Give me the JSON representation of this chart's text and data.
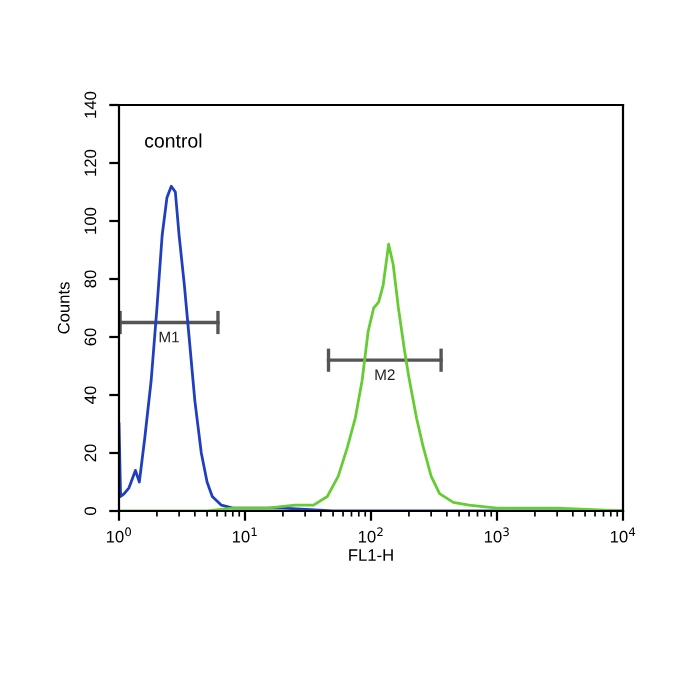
{
  "chart_data": {
    "type": "line",
    "xlabel": "FL1-H",
    "ylabel": "Counts",
    "log": "x",
    "xlim": [
      1,
      10000
    ],
    "xticks": [
      {
        "value": 1,
        "label": "10$^{0}$"
      },
      {
        "value": 10,
        "label": "10$^{1}$"
      },
      {
        "value": 100,
        "label": "10$^{2}$"
      },
      {
        "value": 1000,
        "label": "10$^{3}$"
      },
      {
        "value": 10000,
        "label": "10$^{4}$"
      }
    ],
    "ylim": [
      0,
      140
    ],
    "yticks": [
      0,
      20,
      40,
      60,
      80,
      100,
      120,
      140
    ],
    "grid": false,
    "legend": false,
    "marker": "none",
    "line_style": "solid",
    "annotations": [
      "control"
    ],
    "series": [
      {
        "name": "M1",
        "color": "#555555",
        "x": [
          1.02,
          6.1
        ],
        "values": [
          65,
          65
        ],
        "errors": [
          4,
          4
        ]
      },
      {
        "name": "M2",
        "color": "#555555",
        "x": [
          46,
          360
        ],
        "values": [
          52,
          52
        ],
        "errors": [
          4,
          4
        ]
      },
      {
        "color": "#1f3fbf",
        "x": [
          1.0,
          1.03,
          1.1,
          1.2,
          1.35,
          1.45,
          1.6,
          1.8,
          2.0,
          2.2,
          2.4,
          2.6,
          2.8,
          3.0,
          3.3,
          3.6,
          4.0,
          4.5,
          5.0,
          5.5,
          6.5,
          8,
          10,
          20,
          50,
          100,
          500,
          10000
        ],
        "values": [
          30,
          5,
          6,
          8,
          14,
          10,
          25,
          45,
          70,
          95,
          108,
          112,
          110,
          95,
          78,
          60,
          38,
          20,
          10,
          5,
          2,
          1,
          1,
          1,
          0,
          0,
          0,
          0
        ]
      },
      {
        "color": "#66cc33",
        "x": [
          1,
          5,
          8,
          15,
          25,
          35,
          45,
          55,
          65,
          75,
          85,
          95,
          105,
          115,
          125,
          138,
          150,
          165,
          185,
          200,
          230,
          260,
          300,
          350,
          450,
          600,
          1000,
          3000,
          10000
        ],
        "values": [
          0,
          0,
          1,
          1,
          2,
          2,
          5,
          12,
          22,
          32,
          45,
          62,
          70,
          72,
          78,
          92,
          85,
          70,
          55,
          46,
          32,
          22,
          12,
          6,
          3,
          2,
          1,
          1,
          0
        ]
      }
    ]
  }
}
